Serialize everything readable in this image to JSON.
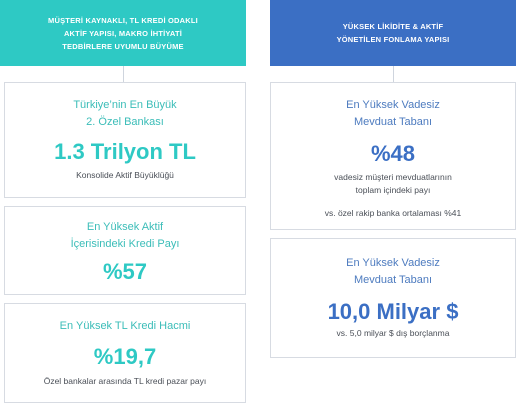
{
  "left_header": {
    "line1": "MÜŞTERİ KAYNAKLI, TL KREDİ ODAKLI",
    "line2": "AKTİF YAPISI, MAKRO İHTİYATİ",
    "line3": "TEDBİRLERE UYUMLU BÜYÜME"
  },
  "right_header": {
    "line1": "YÜKSEK LİKİDİTE & AKTİF",
    "line2": "YÖNETİLEN FONLAMA YAPISI"
  },
  "cards_left": [
    {
      "label_line1": "Türkiye’nin En Büyük",
      "label_line2": "2. Özel Bankası",
      "value": "1.3 Trilyon TL",
      "desc": "Konsolide Aktif Büyüklüğü"
    },
    {
      "label_line1": "En Yüksek Aktif",
      "label_line2": "İçerisindeki Kredi Payı",
      "value": "%57"
    },
    {
      "label_line1": "En Yüksek TL Kredi Hacmi",
      "value": "%19,7",
      "desc": "Özel bankalar arasında TL kredi pazar payı"
    }
  ],
  "cards_right": [
    {
      "label_line1": "En Yüksek Vadesiz",
      "label_line2": "Mevduat Tabanı",
      "value": "%48",
      "desc_line1": "vadesiz müşteri mevduatlarının",
      "desc_line2": "toplam içindeki payı",
      "note": "vs. özel rakip banka ortalaması %41"
    },
    {
      "label_line1": "En Yüksek Vadesiz",
      "label_line2": "Mevduat Tabanı",
      "value": "10,0 Milyar $",
      "desc": "vs. 5,0 milyar $ dış borçlanma"
    }
  ],
  "colors": {
    "teal": "#2ec9c4",
    "blue": "#3b6fc4",
    "border": "#d7dbe2"
  }
}
